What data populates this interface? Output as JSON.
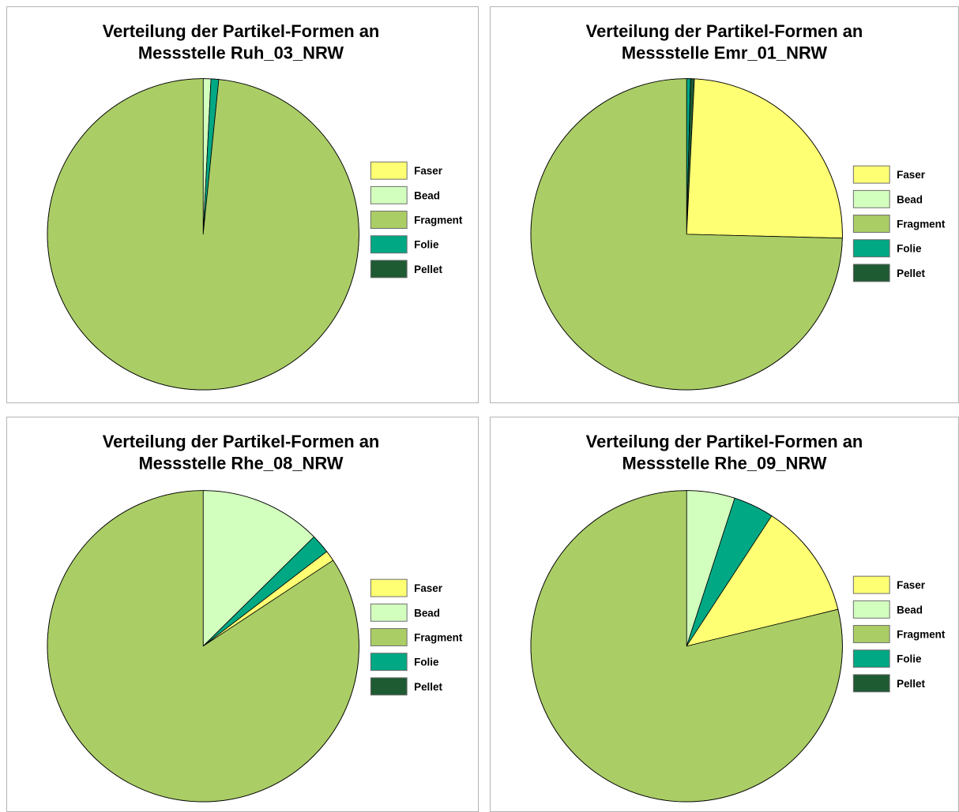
{
  "chart_data": [
    {
      "type": "pie",
      "title": "Verteilung der Partikel-Formen an Messstelle Ruh_03_NRW",
      "title_lines": [
        "Verteilung der Partikel-Formen an",
        "Messstelle Ruh_03_NRW"
      ],
      "categories": [
        "Faser",
        "Bead",
        "Fragment",
        "Folie",
        "Pellet"
      ],
      "values": [
        0.0,
        0.8,
        98.4,
        0.8,
        0.0
      ],
      "legend": "right"
    },
    {
      "type": "pie",
      "title": "Verteilung der Partikel-Formen an Messstelle Emr_01_NRW",
      "title_lines": [
        "Verteilung der Partikel-Formen an",
        "Messstelle Emr_01_NRW"
      ],
      "categories": [
        "Faser",
        "Bead",
        "Fragment",
        "Folie",
        "Pellet"
      ],
      "values": [
        24.6,
        0.0,
        74.6,
        0.4,
        0.4
      ],
      "legend": "right"
    },
    {
      "type": "pie",
      "title": "Verteilung der Partikel-Formen an Messstelle Rhe_08_NRW",
      "title_lines": [
        "Verteilung der Partikel-Formen an",
        "Messstelle Rhe_08_NRW"
      ],
      "categories": [
        "Faser",
        "Bead",
        "Fragment",
        "Folie",
        "Pellet"
      ],
      "values": [
        1.1,
        12.6,
        84.3,
        2.0,
        0.0
      ],
      "legend": "right"
    },
    {
      "type": "pie",
      "title": "Verteilung der Partikel-Formen an Messstelle Rhe_09_NRW",
      "title_lines": [
        "Verteilung der Partikel-Formen an",
        "Messstelle Rhe_09_NRW"
      ],
      "categories": [
        "Faser",
        "Bead",
        "Fragment",
        "Folie",
        "Pellet"
      ],
      "values": [
        12.0,
        5.0,
        78.8,
        4.2,
        0.0
      ],
      "legend": "right"
    }
  ],
  "colors": {
    "Faser": "#ffff73",
    "Bead": "#d3ffbe",
    "Fragment": "#aacd66",
    "Folie": "#00a884",
    "Pellet": "#1e5a32"
  },
  "slice_order": [
    "Bead",
    "Folie",
    "Pellet",
    "Faser",
    "Fragment"
  ],
  "start_angle_deg": 0,
  "direction": "clockwise"
}
